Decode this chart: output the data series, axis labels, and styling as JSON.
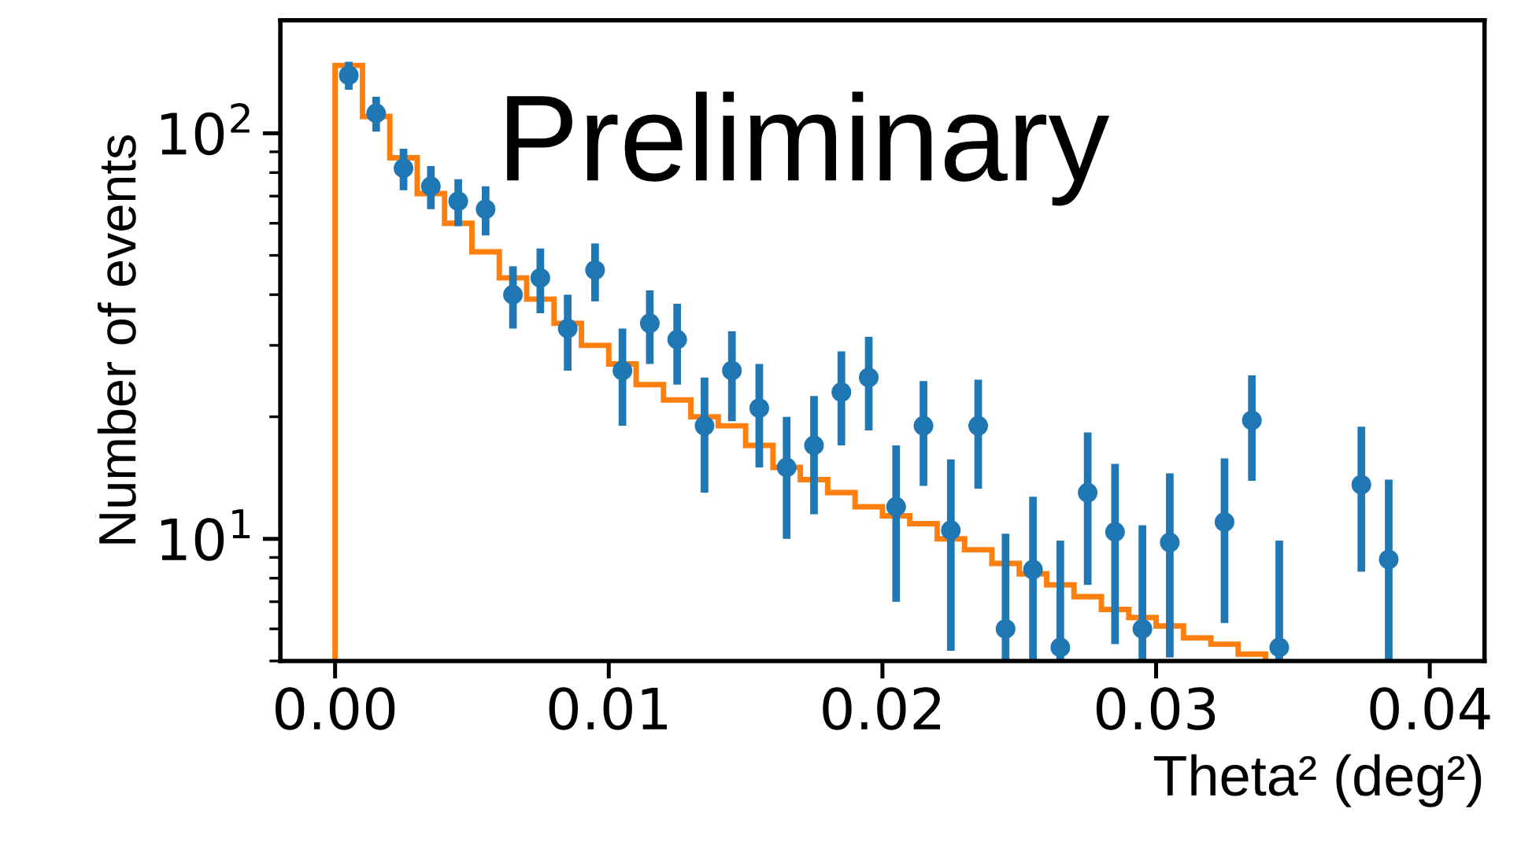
{
  "chart_data": {
    "type": "histogram",
    "xlabel": "Theta² (deg²)",
    "ylabel": "Number of events",
    "annotations": [
      "Preliminary"
    ],
    "log": "y",
    "xlim": [
      -0.002,
      0.042
    ],
    "ylim": [
      5,
      190
    ],
    "xticks": [
      {
        "value": 0.0,
        "label": "0.00"
      },
      {
        "value": 0.01,
        "label": "0.01"
      },
      {
        "value": 0.02,
        "label": "0.02"
      },
      {
        "value": 0.03,
        "label": "0.03"
      },
      {
        "value": 0.04,
        "label": "0.04"
      }
    ],
    "yticks": [
      {
        "value": 10,
        "label": "10$^{1}$"
      },
      {
        "value": 100,
        "label": "10$^{2}$"
      }
    ],
    "grid": false,
    "series": [
      {
        "color": "#ff7f0e",
        "bins": [
          0,
          0.001,
          0.002,
          0.003,
          0.004,
          0.005,
          0.006,
          0.007,
          0.008,
          0.009,
          0.01,
          0.011,
          0.012,
          0.013,
          0.014,
          0.015,
          0.016,
          0.017,
          0.018,
          0.019,
          0.02,
          0.021,
          0.022,
          0.023,
          0.024,
          0.025,
          0.026,
          0.027,
          0.028,
          0.029,
          0.03,
          0.031,
          0.032,
          0.033,
          0.034
        ],
        "values": [
          147,
          110,
          87,
          71,
          60,
          51,
          44,
          39,
          34,
          30,
          27,
          24,
          22,
          20,
          19,
          17,
          15,
          14,
          13,
          12,
          11.4,
          10.9,
          10,
          9.4,
          8.7,
          8.2,
          7.7,
          7.2,
          6.7,
          6.4,
          6.1,
          5.7,
          5.5,
          5.2
        ]
      },
      {
        "type": "scatter",
        "color": "#1f77b4",
        "marker": "circle",
        "x": [
          0.0005,
          0.0015,
          0.0025,
          0.0035,
          0.0045,
          0.0055,
          0.0065,
          0.0075,
          0.0085,
          0.0095,
          0.0105,
          0.0115,
          0.0125,
          0.0135,
          0.0145,
          0.0155,
          0.0165,
          0.0175,
          0.0185,
          0.0195,
          0.0205,
          0.0215,
          0.0225,
          0.0235,
          0.0245,
          0.0255,
          0.0265,
          0.0275,
          0.0285,
          0.0295,
          0.0305,
          0.0325,
          0.0335,
          0.0345,
          0.0375,
          0.0385
        ],
        "values": [
          139,
          112,
          82,
          74,
          68,
          65,
          40,
          44,
          33,
          46,
          26,
          34,
          31,
          19,
          26,
          21,
          15,
          17,
          23,
          25,
          12,
          19,
          10.5,
          19,
          6,
          8.4,
          5.4,
          13,
          10.4,
          6,
          9.8,
          11,
          19.6,
          5.4,
          13.6,
          8.9
        ],
        "errors": [
          11,
          11,
          9.6,
          9,
          9,
          9,
          7,
          8,
          7,
          7.5,
          7,
          7,
          7,
          6,
          6.5,
          6,
          5,
          5.5,
          6,
          6.5,
          5,
          5.5,
          5.2,
          5.7,
          [
            5,
            10.3
          ],
          [
            5,
            12.7
          ],
          [
            5,
            9.9
          ],
          5.3,
          4.9,
          [
            5,
            10.8
          ],
          4.7,
          4.8,
          5.7,
          [
            5,
            9.9
          ],
          5.3,
          [
            5,
            14
          ]
        ]
      }
    ]
  }
}
